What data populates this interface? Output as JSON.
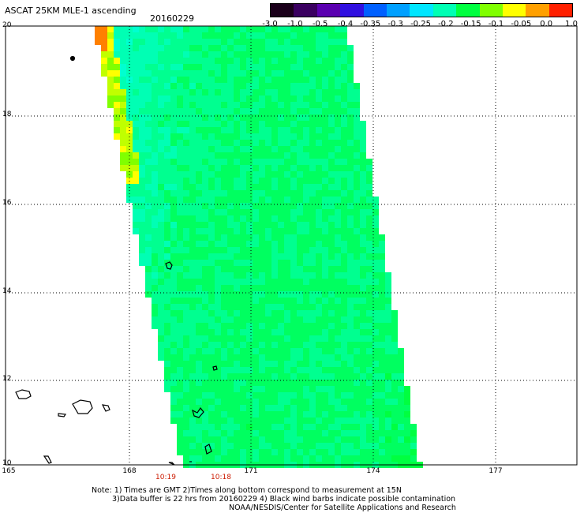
{
  "header": {
    "title": "ASCAT 25KM MLE-1 ascending",
    "date": "20160229"
  },
  "colorbar": {
    "labels": [
      "-3.0",
      "-1.0",
      "-0.5",
      "-0.4",
      "-0.35",
      "-0.3",
      "-0.25",
      "-0.2",
      "-0.15",
      "-0.1",
      "-0.05",
      "0.0",
      "1.0"
    ],
    "colors": [
      "#1a001a",
      "#3a0060",
      "#5a00b0",
      "#3010e0",
      "#0060ff",
      "#00a0ff",
      "#00e6ff",
      "#00ffb4",
      "#00ff40",
      "#80ff00",
      "#ffff00",
      "#ffa000",
      "#ff2000"
    ]
  },
  "axes": {
    "y_ticks": [
      "20",
      "18",
      "16",
      "14",
      "12",
      "10"
    ],
    "x_ticks": [
      "165",
      "168",
      "171",
      "174",
      "177"
    ],
    "time_labels": [
      "10:19",
      "10:18"
    ]
  },
  "notes": {
    "line1": "Note: 1) Times are GMT 2)Times along bottom correspond to measurement at 15N",
    "line2": "3)Data buffer is 22 hrs from 20160229 4) Black wind barbs indicate possible contamination",
    "line3": "NOAA/NESDIS/Center for Satellite Applications and Research"
  }
}
